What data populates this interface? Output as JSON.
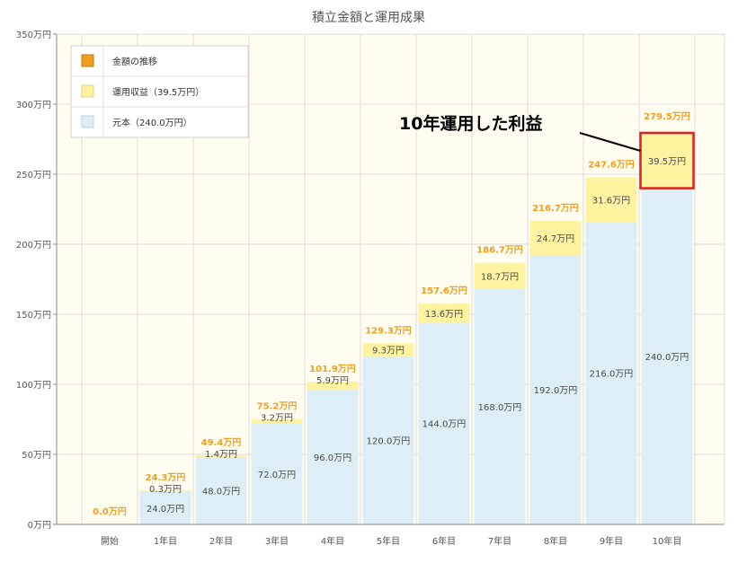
{
  "chart_data": {
    "type": "bar",
    "stacked": true,
    "title": "積立金額と運用成果",
    "xlabel": "",
    "ylabel": "",
    "ylim": [
      0,
      350
    ],
    "yticks": [
      "0万円",
      "50万円",
      "100万円",
      "150万円",
      "200万円",
      "250万円",
      "300万円",
      "350万円"
    ],
    "ytick_values": [
      0,
      50,
      100,
      150,
      200,
      250,
      300,
      350
    ],
    "grid": true,
    "legend_position": "top-left",
    "categories": [
      "開始",
      "1年目",
      "2年目",
      "3年目",
      "4年目",
      "5年目",
      "6年目",
      "7年目",
      "8年目",
      "9年目",
      "10年目"
    ],
    "series": [
      {
        "name": "元本（240.0万円）",
        "color": "#ddeef6",
        "values": [
          0,
          24.0,
          48.0,
          72.0,
          96.0,
          120.0,
          144.0,
          168.0,
          192.0,
          216.0,
          240.0
        ],
        "labels": [
          "",
          "24.0万円",
          "48.0万円",
          "72.0万円",
          "96.0万円",
          "120.0万円",
          "144.0万円",
          "168.0万円",
          "192.0万円",
          "216.0万円",
          "240.0万円"
        ]
      },
      {
        "name": "運用収益（39.5万円）",
        "color": "#fff3a0",
        "values": [
          0,
          0.3,
          1.4,
          3.2,
          5.9,
          9.3,
          13.6,
          18.7,
          24.7,
          31.6,
          39.5
        ],
        "labels": [
          "",
          "0.3万円",
          "1.4万円",
          "3.2万円",
          "5.9万円",
          "9.3万円",
          "13.6万円",
          "18.7万円",
          "24.7万円",
          "31.6万円",
          "39.5万円"
        ]
      }
    ],
    "totals": {
      "name": "金額の推移",
      "color": "#f0a020",
      "values": [
        0.0,
        24.3,
        49.4,
        75.2,
        101.9,
        129.3,
        157.6,
        186.7,
        216.7,
        247.6,
        279.5
      ],
      "labels": [
        "0.0万円",
        "24.3万円",
        "49.4万円",
        "75.2万円",
        "101.9万円",
        "129.3万円",
        "157.6万円",
        "186.7万円",
        "216.7万円",
        "247.6万円",
        "279.5万円"
      ]
    },
    "annotation": {
      "text": "10年運用した利益",
      "target_category": "10年目",
      "highlight_color": "#e02020"
    }
  }
}
